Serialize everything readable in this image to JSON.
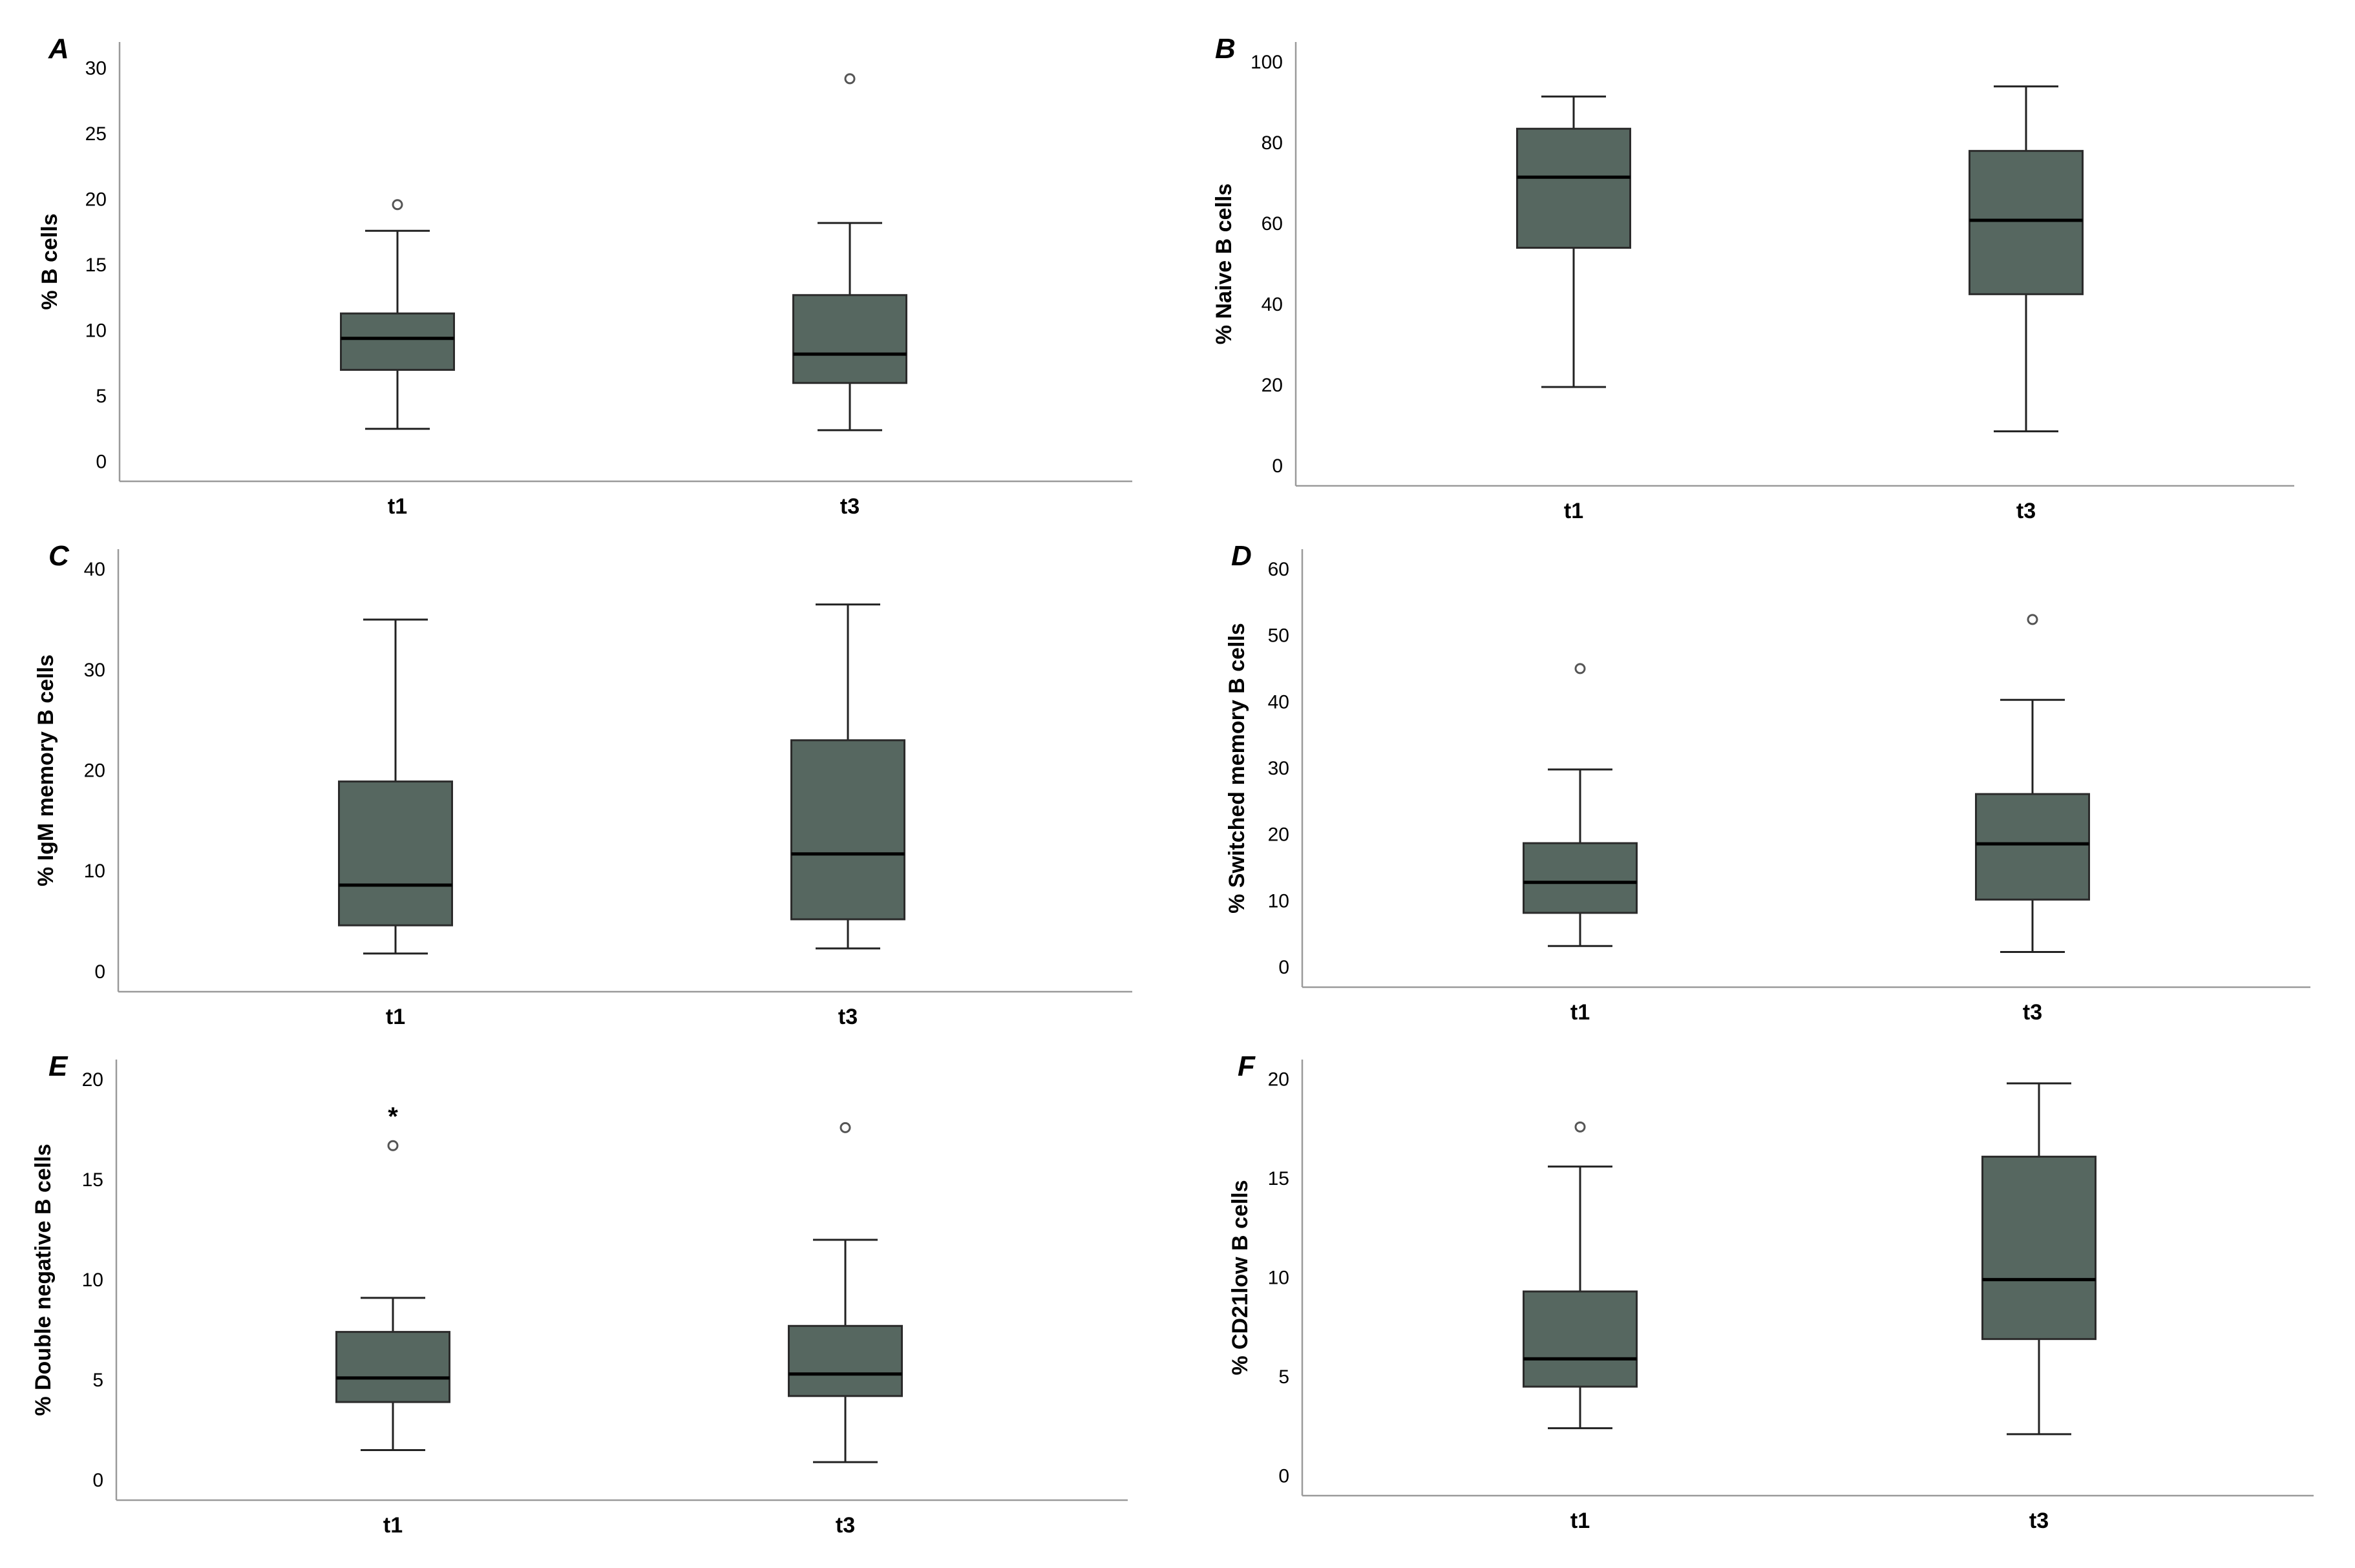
{
  "chart_data": [
    {
      "panel": "A",
      "type": "box",
      "ylabel": "% B cells",
      "yticks": [
        0,
        5,
        10,
        15,
        20,
        25,
        30
      ],
      "ylim": [
        -1.5,
        32
      ],
      "categories": [
        "t1",
        "t3"
      ],
      "boxes": [
        {
          "category": "t1",
          "min": 2.5,
          "q1": 7.0,
          "median": 9.4,
          "q3": 11.3,
          "max": 17.6,
          "outliers": [
            {
              "value": 19.6,
              "marker": "o"
            }
          ]
        },
        {
          "category": "t3",
          "min": 2.4,
          "q1": 6.0,
          "median": 8.2,
          "q3": 12.7,
          "max": 18.2,
          "outliers": [
            {
              "value": 29.2,
              "marker": "o"
            }
          ]
        }
      ]
    },
    {
      "panel": "B",
      "type": "box",
      "ylabel": "% Naive B cells",
      "yticks": [
        0,
        20,
        40,
        60,
        80,
        100
      ],
      "ylim": [
        -5,
        105
      ],
      "categories": [
        "t1",
        "t3"
      ],
      "boxes": [
        {
          "category": "t1",
          "min": 19.5,
          "q1": 54.0,
          "median": 71.5,
          "q3": 83.5,
          "max": 91.5,
          "outliers": []
        },
        {
          "category": "t3",
          "min": 8.5,
          "q1": 42.5,
          "median": 60.8,
          "q3": 78.0,
          "max": 94.0,
          "outliers": []
        }
      ]
    },
    {
      "panel": "C",
      "type": "box",
      "ylabel": "% IgM memory B cells",
      "yticks": [
        0,
        10,
        20,
        30,
        40
      ],
      "ylim": [
        -2,
        42
      ],
      "categories": [
        "t1",
        "t3"
      ],
      "boxes": [
        {
          "category": "t1",
          "min": 1.8,
          "q1": 4.6,
          "median": 8.6,
          "q3": 18.9,
          "max": 35.0,
          "outliers": []
        },
        {
          "category": "t3",
          "min": 2.3,
          "q1": 5.2,
          "median": 11.7,
          "q3": 23.0,
          "max": 36.5,
          "outliers": []
        }
      ]
    },
    {
      "panel": "D",
      "type": "box",
      "ylabel": "% Switched memory B cells",
      "yticks": [
        0,
        10,
        20,
        30,
        40,
        50,
        60
      ],
      "ylim": [
        -3,
        63
      ],
      "categories": [
        "t1",
        "t3"
      ],
      "boxes": [
        {
          "category": "t1",
          "min": 3.2,
          "q1": 8.2,
          "median": 12.8,
          "q3": 18.7,
          "max": 29.8,
          "outliers": [
            {
              "value": 45.0,
              "marker": "o"
            }
          ]
        },
        {
          "category": "t3",
          "min": 2.3,
          "q1": 10.2,
          "median": 18.6,
          "q3": 26.1,
          "max": 40.3,
          "outliers": [
            {
              "value": 52.4,
              "marker": "o"
            }
          ]
        }
      ]
    },
    {
      "panel": "E",
      "type": "box",
      "ylabel": "% Double negative B cells",
      "yticks": [
        0,
        5,
        10,
        15,
        20
      ],
      "ylim": [
        -1,
        21
      ],
      "categories": [
        "t1",
        "t3"
      ],
      "boxes": [
        {
          "category": "t1",
          "min": 1.5,
          "q1": 3.9,
          "median": 5.1,
          "q3": 7.4,
          "max": 9.1,
          "outliers": [
            {
              "value": 16.7,
              "marker": "o"
            },
            {
              "value": 18.3,
              "marker": "*"
            }
          ]
        },
        {
          "category": "t3",
          "min": 0.9,
          "q1": 4.2,
          "median": 5.3,
          "q3": 7.7,
          "max": 12.0,
          "outliers": [
            {
              "value": 17.6,
              "marker": "o"
            }
          ]
        }
      ]
    },
    {
      "panel": "F",
      "type": "box",
      "ylabel": "% CD21low B cells",
      "yticks": [
        0,
        5,
        10,
        15,
        20
      ],
      "ylim": [
        -1,
        21
      ],
      "categories": [
        "t1",
        "t3"
      ],
      "boxes": [
        {
          "category": "t1",
          "min": 2.4,
          "q1": 4.5,
          "median": 5.9,
          "q3": 9.3,
          "max": 15.6,
          "outliers": [
            {
              "value": 17.6,
              "marker": "o"
            }
          ]
        },
        {
          "category": "t3",
          "min": 2.1,
          "q1": 6.9,
          "median": 9.9,
          "q3": 16.1,
          "max": 19.8,
          "outliers": []
        }
      ]
    }
  ]
}
